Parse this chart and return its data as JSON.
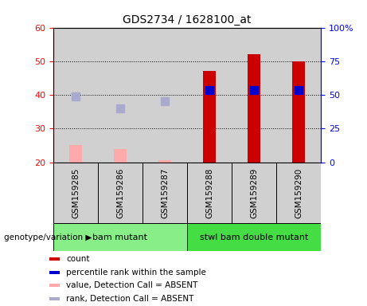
{
  "title": "GDS2734 / 1628100_at",
  "samples": [
    "GSM159285",
    "GSM159286",
    "GSM159287",
    "GSM159288",
    "GSM159289",
    "GSM159290"
  ],
  "groups": [
    {
      "label": "bam mutant",
      "color": "#88ee88",
      "samples": [
        0,
        1,
        2
      ]
    },
    {
      "label": "stwl bam double mutant",
      "color": "#44dd44",
      "samples": [
        3,
        4,
        5
      ]
    }
  ],
  "bar_values": [
    null,
    null,
    null,
    47,
    52,
    50
  ],
  "bar_values_absent": [
    25,
    24,
    20.5,
    null,
    null,
    null
  ],
  "rank_values": [
    null,
    null,
    null,
    41.5,
    41.5,
    41.5
  ],
  "rank_values_absent": [
    39.5,
    36,
    38,
    null,
    null,
    null
  ],
  "ylim_left": [
    20,
    60
  ],
  "ylim_right": [
    0,
    100
  ],
  "yticks_left": [
    20,
    30,
    40,
    50,
    60
  ],
  "yticks_right": [
    0,
    25,
    50,
    75,
    100
  ],
  "ytick_labels_right": [
    "0",
    "25",
    "50",
    "75",
    "100%"
  ],
  "bar_color_present": "#cc0000",
  "bar_color_absent": "#ffaaaa",
  "rank_color_present": "#0000cc",
  "rank_color_absent": "#aaaacc",
  "bar_width": 0.28,
  "rank_marker_size": 50,
  "group_label_y": "genotype/variation",
  "legend_items": [
    {
      "color": "#cc0000",
      "label": "count"
    },
    {
      "color": "#0000cc",
      "label": "percentile rank within the sample"
    },
    {
      "color": "#ffaaaa",
      "label": "value, Detection Call = ABSENT"
    },
    {
      "color": "#aaaacc",
      "label": "rank, Detection Call = ABSENT"
    }
  ],
  "col_bg_color": "#d0d0d0",
  "plot_bg": "#ffffff"
}
